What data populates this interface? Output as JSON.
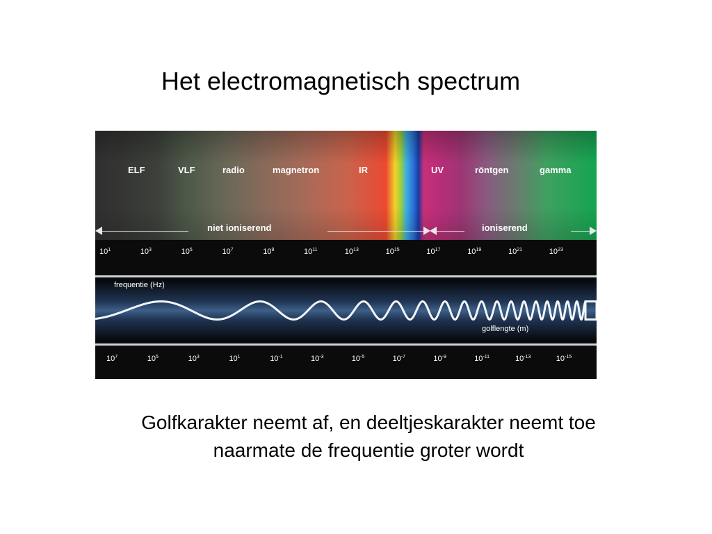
{
  "title": "Het electromagnetisch spectrum",
  "bands": [
    {
      "id": "elf",
      "label": "ELF"
    },
    {
      "id": "vlf",
      "label": "VLF"
    },
    {
      "id": "radio",
      "label": "radio"
    },
    {
      "id": "magnetron",
      "label": "magnetron"
    },
    {
      "id": "ir",
      "label": "IR"
    },
    {
      "id": "uv",
      "label": "UV"
    },
    {
      "id": "rontgen",
      "label": "röntgen"
    },
    {
      "id": "gamma",
      "label": "gamma"
    }
  ],
  "ionisation": {
    "non_ionising": "niet ioniserend",
    "ionising": "ioniserend"
  },
  "frequency": {
    "caption": "frequentie (Hz)",
    "ticks": [
      {
        "base": "10",
        "exp": "1"
      },
      {
        "base": "10",
        "exp": "3"
      },
      {
        "base": "10",
        "exp": "5"
      },
      {
        "base": "10",
        "exp": "7"
      },
      {
        "base": "10",
        "exp": "9"
      },
      {
        "base": "10",
        "exp": "11"
      },
      {
        "base": "10",
        "exp": "13"
      },
      {
        "base": "10",
        "exp": "15"
      },
      {
        "base": "10",
        "exp": "17"
      },
      {
        "base": "10",
        "exp": "19"
      },
      {
        "base": "10",
        "exp": "21"
      },
      {
        "base": "10",
        "exp": "23"
      }
    ]
  },
  "wavelength": {
    "caption": "golflengte (m)",
    "ticks": [
      {
        "base": "10",
        "exp": "7"
      },
      {
        "base": "10",
        "exp": "5"
      },
      {
        "base": "10",
        "exp": "3"
      },
      {
        "base": "10",
        "exp": "1"
      },
      {
        "base": "10",
        "exp": "-1"
      },
      {
        "base": "10",
        "exp": "-3"
      },
      {
        "base": "10",
        "exp": "-5"
      },
      {
        "base": "10",
        "exp": "-7"
      },
      {
        "base": "10",
        "exp": "-9"
      },
      {
        "base": "10",
        "exp": "-11"
      },
      {
        "base": "10",
        "exp": "-13"
      },
      {
        "base": "10",
        "exp": "-15"
      }
    ]
  },
  "caption_lines": [
    "Golfkarakter neemt af, en deeltjeskarakter neemt toe",
    "naarmate de frequentie groter wordt"
  ]
}
